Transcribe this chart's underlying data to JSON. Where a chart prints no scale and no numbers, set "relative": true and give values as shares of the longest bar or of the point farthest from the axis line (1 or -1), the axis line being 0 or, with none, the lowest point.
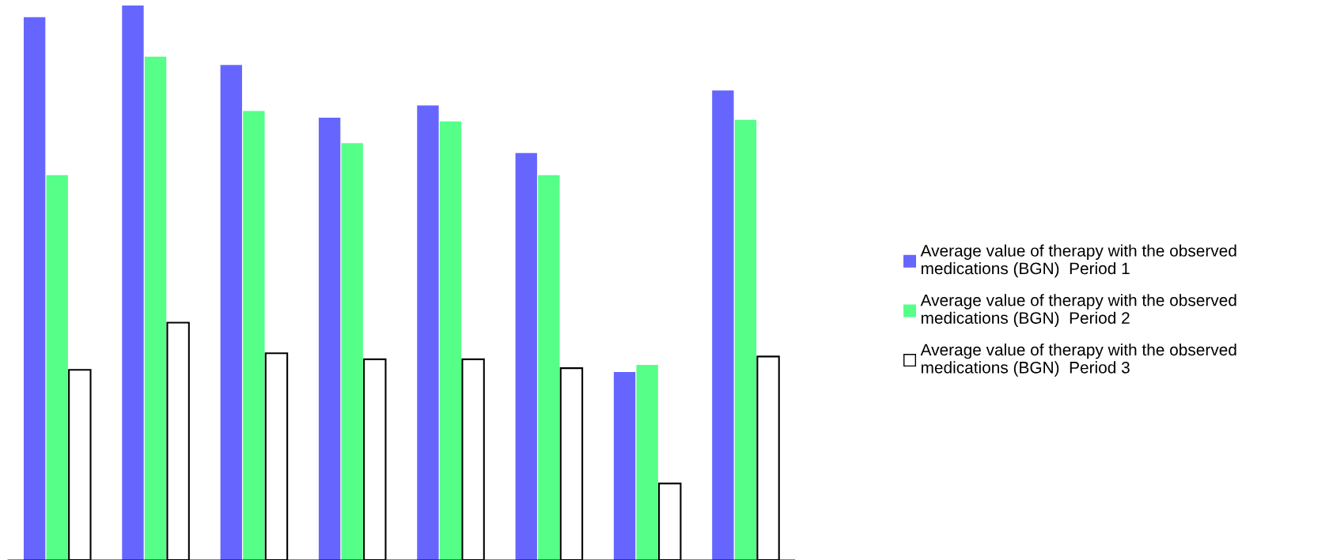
{
  "chart_data": {
    "type": "bar",
    "relative": true,
    "categories": [
      null,
      null,
      null,
      null,
      null,
      null,
      null,
      null
    ],
    "series": [
      {
        "name": "Average value of therapy with the observed\nmedications (BGN)  Period 1",
        "color": "#6666ff",
        "values": [
          0.979,
          1,
          0.893,
          0.798,
          0.82,
          0.734,
          0.339,
          0.847
        ]
      },
      {
        "name": "Average value of therapy with the observed\nmedications (BGN)  Period 2",
        "color": "#55ff88",
        "values": [
          0.694,
          0.908,
          0.81,
          0.752,
          0.791,
          0.694,
          0.352,
          0.794
        ]
      },
      {
        "name": "Average value of therapy with the observed\nmedications (BGN)  Period 3",
        "color": "#ffffff",
        "values": [
          0.343,
          0.428,
          0.373,
          0.362,
          0.362,
          0.346,
          0.138,
          0.367
        ]
      }
    ],
    "legend": "right"
  }
}
